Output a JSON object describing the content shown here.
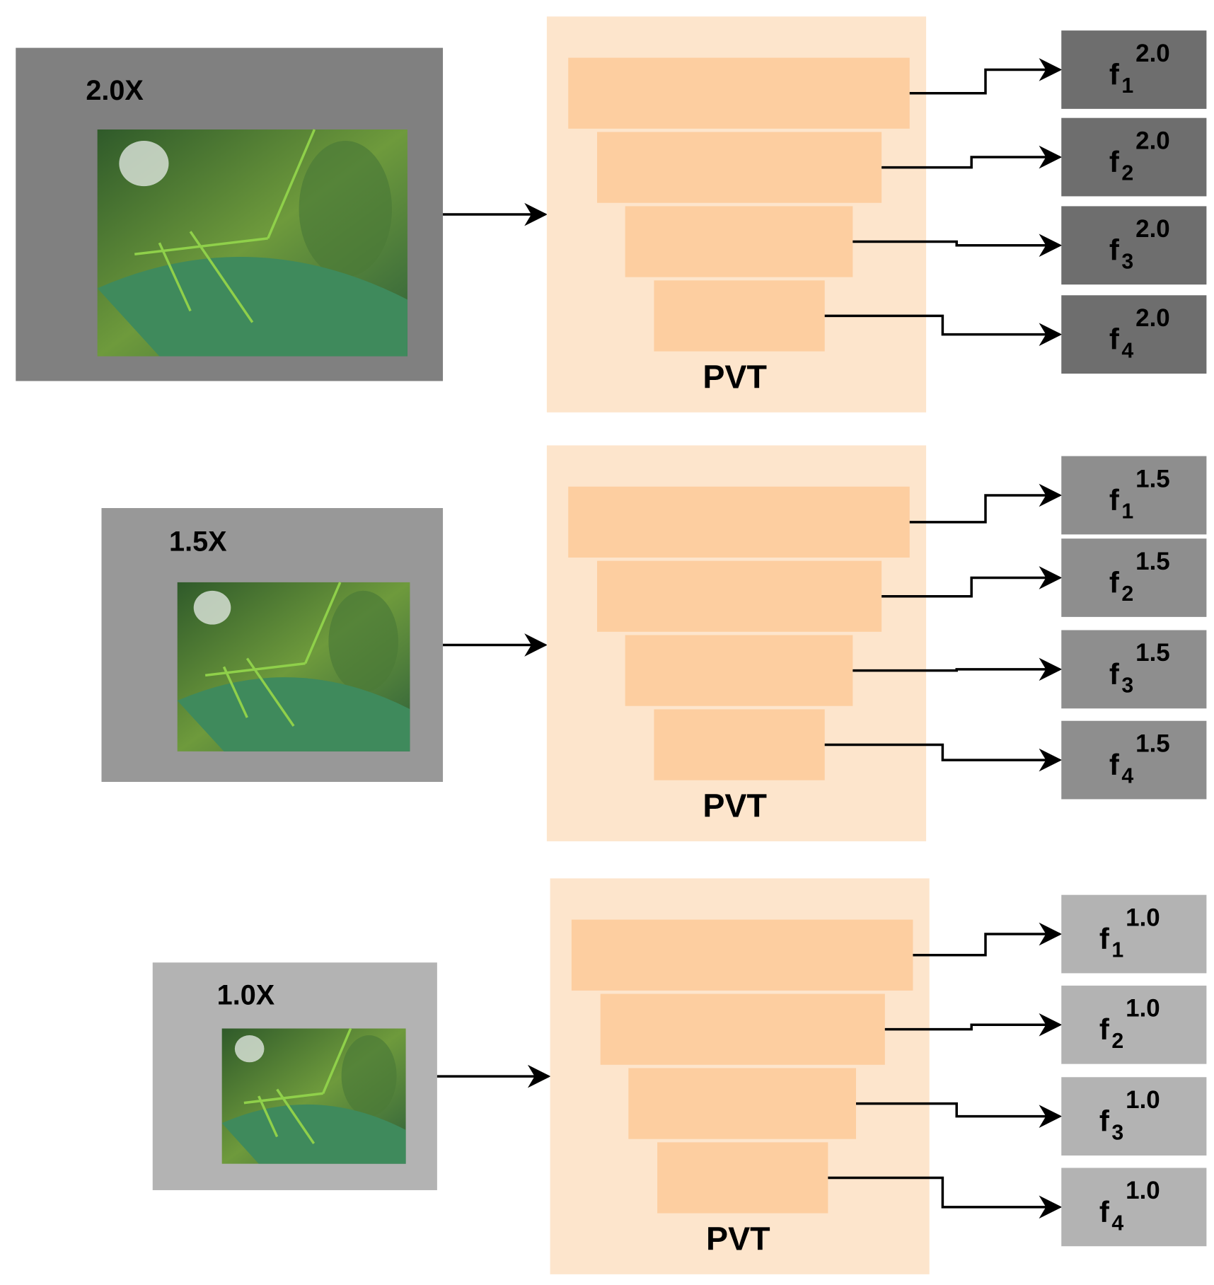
{
  "rows": [
    {
      "scale": "2.0X",
      "encoder": "PVT",
      "features": [
        {
          "base": "f",
          "sub": "1",
          "sup": "2.0"
        },
        {
          "base": "f",
          "sub": "2",
          "sup": "2.0"
        },
        {
          "base": "f",
          "sub": "3",
          "sup": "2.0"
        },
        {
          "base": "f",
          "sub": "4",
          "sup": "2.0"
        }
      ]
    },
    {
      "scale": "1.5X",
      "encoder": "PVT",
      "features": [
        {
          "base": "f",
          "sub": "1",
          "sup": "1.5"
        },
        {
          "base": "f",
          "sub": "2",
          "sup": "1.5"
        },
        {
          "base": "f",
          "sub": "3",
          "sup": "1.5"
        },
        {
          "base": "f",
          "sub": "4",
          "sup": "1.5"
        }
      ]
    },
    {
      "scale": "1.0X",
      "encoder": "PVT",
      "features": [
        {
          "base": "f",
          "sub": "1",
          "sup": "1.0"
        },
        {
          "base": "f",
          "sub": "2",
          "sup": "1.0"
        },
        {
          "base": "f",
          "sub": "3",
          "sup": "1.0"
        },
        {
          "base": "f",
          "sub": "4",
          "sup": "1.0"
        }
      ]
    }
  ]
}
